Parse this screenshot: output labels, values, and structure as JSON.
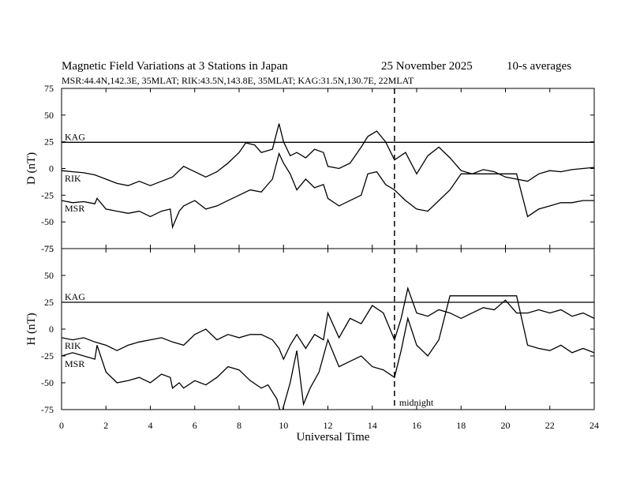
{
  "header": {
    "title": "Magnetic Field Variations at 3 Stations in Japan",
    "date": "25 November 2025",
    "averaging": "10-s averages",
    "stations": "MSR:44.4N,142.3E, 35MLAT;  RIK:43.5N,143.8E, 35MLAT;  KAG:31.5N,130.7E, 22MLAT"
  },
  "chart_data": [
    {
      "type": "line",
      "panel": "D",
      "ylabel": "D (nT)",
      "xlabel": "Universal Time",
      "xlim": [
        0,
        24
      ],
      "ylim": [
        -75,
        75
      ],
      "xticks": [
        0,
        2,
        4,
        6,
        8,
        10,
        12,
        14,
        16,
        18,
        20,
        22,
        24
      ],
      "yticks": [
        75,
        50,
        25,
        0,
        -25,
        -50,
        -75
      ],
      "vline": {
        "x": 15,
        "label": "midnight"
      },
      "series": [
        {
          "name": "KAG",
          "x": [
            0,
            24
          ],
          "values": [
            24.5,
            24.5
          ]
        },
        {
          "name": "RIK",
          "x": [
            0,
            0.5,
            1,
            1.5,
            2,
            2.5,
            3,
            3.5,
            4,
            4.5,
            5,
            5.5,
            6,
            6.5,
            7,
            7.5,
            8,
            8.3,
            8.7,
            9,
            9.5,
            9.8,
            10,
            10.3,
            10.6,
            11,
            11.4,
            11.8,
            12,
            12.5,
            13,
            13.5,
            13.8,
            14.2,
            14.6,
            15,
            15.5,
            16,
            16.5,
            17,
            17.5,
            18,
            18.5,
            19,
            19.5,
            20,
            20.5,
            21,
            21.5,
            22,
            22.5,
            23,
            23.5,
            24
          ],
          "values": [
            -2,
            -3,
            -4,
            -6,
            -10,
            -14,
            -16,
            -12,
            -16,
            -12,
            -8,
            2,
            -3,
            -8,
            -3,
            5,
            15,
            24,
            22,
            15,
            18,
            42,
            25,
            12,
            15,
            10,
            18,
            15,
            2,
            0,
            5,
            20,
            30,
            35,
            25,
            8,
            15,
            -5,
            12,
            20,
            10,
            -2,
            -5,
            -1,
            -3,
            -8,
            -10,
            -12,
            -5,
            -2,
            -3,
            -1,
            0,
            1
          ]
        },
        {
          "name": "MSR",
          "x": [
            0,
            0.5,
            1,
            1.5,
            1.6,
            2,
            2.5,
            3,
            3.5,
            4,
            4.5,
            4.9,
            5,
            5.3,
            5.5,
            6,
            6.5,
            7,
            7.5,
            8,
            8.5,
            9,
            9.5,
            9.8,
            10,
            10.3,
            10.6,
            11,
            11.4,
            11.8,
            12,
            12.5,
            13,
            13.5,
            13.8,
            14.2,
            14.6,
            15,
            15.5,
            16,
            16.5,
            17,
            17.5,
            18,
            18.5,
            19,
            19.5,
            20,
            20.5,
            21,
            21.5,
            22,
            22.5,
            23,
            23.5,
            24
          ],
          "values": [
            -30,
            -32,
            -31,
            -33,
            -28,
            -38,
            -40,
            -42,
            -40,
            -45,
            -40,
            -38,
            -55,
            -40,
            -35,
            -30,
            -38,
            -35,
            -30,
            -25,
            -20,
            -22,
            -10,
            14,
            5,
            -5,
            -20,
            -10,
            -18,
            -15,
            -28,
            -35,
            -30,
            -25,
            -5,
            -3,
            -15,
            -20,
            -30,
            -38,
            -40,
            -30,
            -20,
            -5,
            -5,
            -5,
            -5,
            -5,
            -5,
            -45,
            -38,
            -35,
            -32,
            -32,
            -30,
            -30
          ]
        }
      ]
    },
    {
      "type": "line",
      "panel": "H",
      "ylabel": "H (nT)",
      "xlabel": "Universal Time",
      "xlim": [
        0,
        24
      ],
      "ylim": [
        -75,
        75
      ],
      "xticks": [
        0,
        2,
        4,
        6,
        8,
        10,
        12,
        14,
        16,
        18,
        20,
        22,
        24
      ],
      "yticks": [
        75,
        50,
        25,
        0,
        -25,
        -50,
        -75
      ],
      "vline": {
        "x": 15,
        "label": "midnight"
      },
      "series": [
        {
          "name": "KAG",
          "x": [
            0,
            24
          ],
          "values": [
            25,
            25
          ]
        },
        {
          "name": "RIK",
          "x": [
            0,
            0.5,
            1,
            1.5,
            2,
            2.5,
            3,
            3.5,
            4,
            4.5,
            5,
            5.5,
            6,
            6.5,
            7,
            7.5,
            8,
            8.5,
            9,
            9.5,
            9.8,
            10,
            10.3,
            10.6,
            11,
            11.4,
            11.8,
            12,
            12.5,
            13,
            13.5,
            14,
            14.5,
            15,
            15.3,
            15.6,
            16,
            16.5,
            17,
            17.5,
            18,
            18.5,
            19,
            19.5,
            20,
            20.5,
            21,
            21.5,
            22,
            22.5,
            23,
            23.5,
            24
          ],
          "values": [
            -8,
            -10,
            -8,
            -12,
            -15,
            -20,
            -15,
            -12,
            -10,
            -8,
            -12,
            -15,
            -5,
            0,
            -10,
            -5,
            -8,
            -5,
            -5,
            -10,
            -18,
            -28,
            -15,
            -5,
            -18,
            -5,
            -10,
            15,
            -8,
            10,
            5,
            22,
            15,
            -10,
            10,
            38,
            15,
            12,
            18,
            15,
            10,
            15,
            20,
            18,
            27,
            15,
            15,
            18,
            15,
            18,
            12,
            15,
            10
          ]
        },
        {
          "name": "MSR",
          "x": [
            0,
            0.5,
            1,
            1.5,
            1.6,
            2,
            2.5,
            3,
            3.5,
            4,
            4.5,
            4.9,
            5,
            5.3,
            5.5,
            6,
            6.5,
            7,
            7.5,
            8,
            8.5,
            9,
            9.3,
            9.7,
            9.9,
            10,
            10.3,
            10.6,
            10.9,
            11.2,
            11.6,
            12,
            12.5,
            13,
            13.5,
            14,
            14.5,
            15,
            15.3,
            15.6,
            16,
            16.5,
            17,
            17.5,
            18,
            18.5,
            19,
            19.5,
            20,
            20.5,
            21,
            21.5,
            22,
            22.5,
            23,
            23.5,
            24
          ],
          "values": [
            -25,
            -22,
            -25,
            -28,
            -15,
            -40,
            -50,
            -48,
            -45,
            -50,
            -42,
            -45,
            -55,
            -50,
            -55,
            -48,
            -52,
            -45,
            -35,
            -38,
            -48,
            -55,
            -52,
            -65,
            -80,
            -72,
            -50,
            -20,
            -70,
            -55,
            -40,
            -10,
            -35,
            -30,
            -25,
            -35,
            -38,
            -45,
            -20,
            10,
            -15,
            -25,
            -10,
            31,
            31,
            31,
            31,
            31,
            31,
            31,
            -15,
            -18,
            -20,
            -15,
            -22,
            -18,
            -22
          ]
        }
      ]
    }
  ]
}
